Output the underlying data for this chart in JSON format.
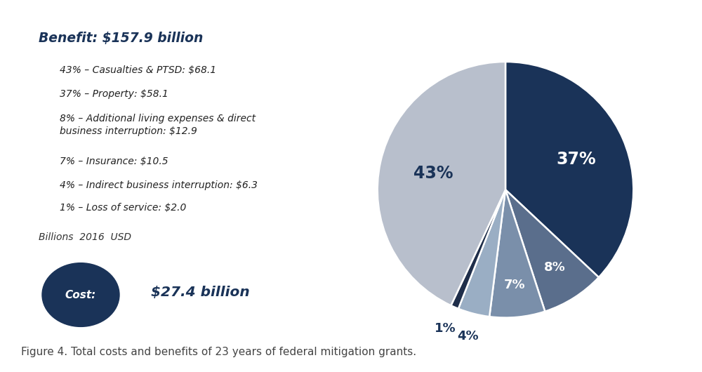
{
  "pie_values": [
    37,
    8,
    7,
    4,
    1,
    43
  ],
  "pie_colors": [
    "#1a3358",
    "#5a6e8c",
    "#7a8faa",
    "#9aaec4",
    "#1f2e4a",
    "#b8bfcc"
  ],
  "pie_labels_inside": [
    "37%",
    "8%",
    "7%",
    null,
    null,
    "43%"
  ],
  "pie_labels_outside": [
    null,
    null,
    null,
    "4%",
    "1%",
    null
  ],
  "benefit_title": "Benefit: $157.9 billion",
  "legend_lines": [
    "43% – Casualties & PTSD: $68.1",
    "37% – Property: $58.1",
    "8% – Additional living expenses & direct\nbusiness interruption: $12.9",
    "7% – Insurance: $10.5",
    "4% – Indirect business interruption: $6.3",
    "1% – Loss of service: $2.0"
  ],
  "units_label": "Billions  2016  USD",
  "cost_label": "Cost:",
  "cost_value": "$27.4 billion",
  "figure_caption": "Figure 4. Total costs and benefits of 23 years of federal mitigation grants.",
  "bg_color": "#ffffff",
  "dark_navy": "#1a3358",
  "startangle": 90
}
